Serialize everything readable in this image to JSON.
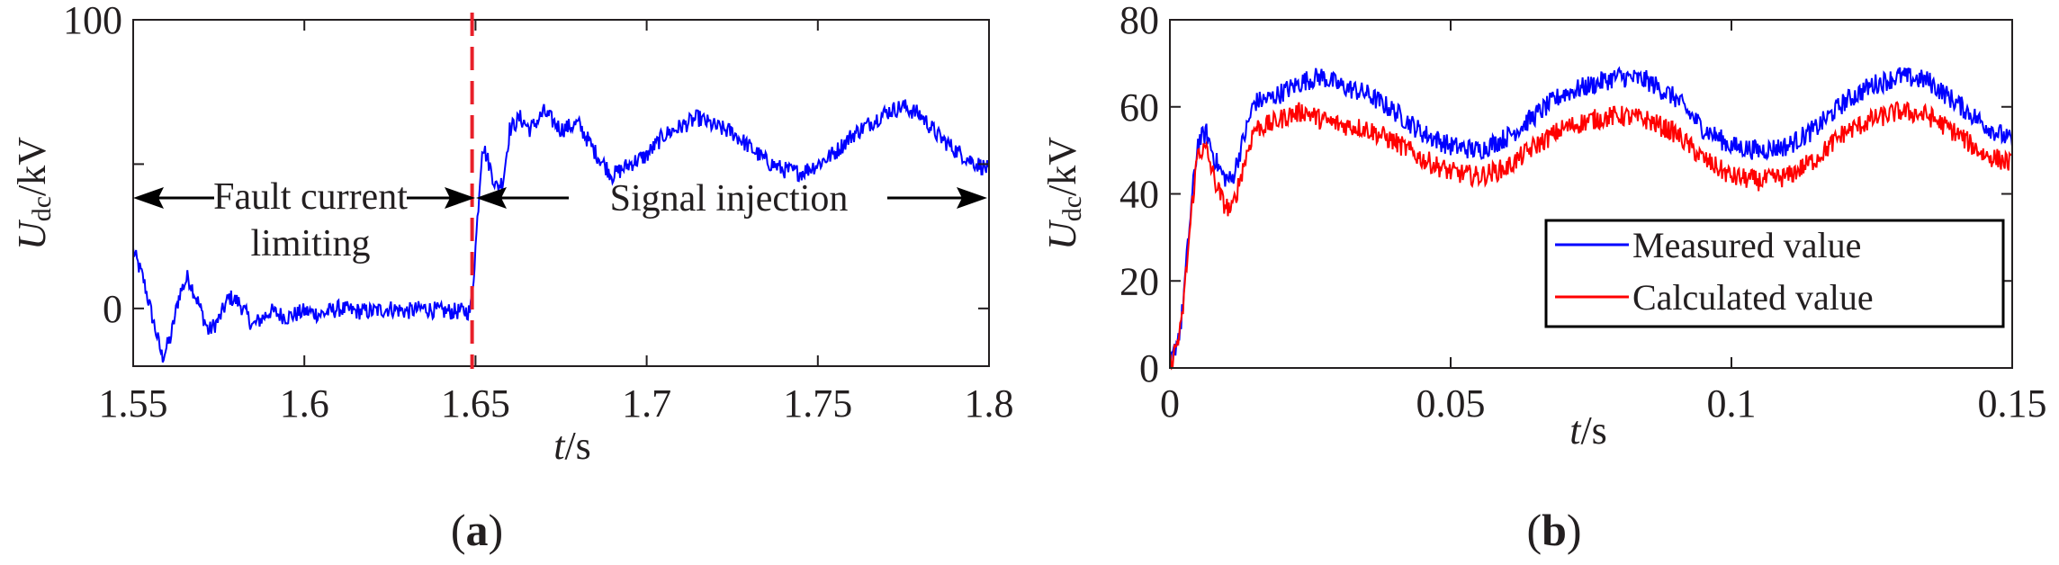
{
  "colors": {
    "measured": "#0000ff",
    "calculated": "#ff0000",
    "divider": "#e8202a",
    "axis": "#231f20"
  },
  "chart_data": [
    {
      "type": "line",
      "panel_label": "a",
      "xlabel": "/s",
      "xlabel_var": "t",
      "ylabel_var": "U",
      "ylabel_sub": "dc",
      "ylabel_unit": "/kV",
      "xlim": [
        1.55,
        1.8
      ],
      "ylim": [
        -20,
        100
      ],
      "xticks": [
        1.55,
        1.6,
        1.65,
        1.7,
        1.75,
        1.8
      ],
      "xtick_labels": [
        "1.55",
        "1.6",
        "1.65",
        "1.7",
        "1.75",
        "1.8"
      ],
      "yticks": [
        0,
        100
      ],
      "ytick_labels": [
        "0",
        "100"
      ],
      "divider_x": 1.649,
      "series": [
        {
          "name": "Udc",
          "color": "#0000ff",
          "x": [
            1.55,
            1.553,
            1.556,
            1.5585,
            1.561,
            1.5635,
            1.566,
            1.569,
            1.572,
            1.575,
            1.578,
            1.581,
            1.585,
            1.59,
            1.595,
            1.6,
            1.605,
            1.61,
            1.615,
            1.62,
            1.625,
            1.63,
            1.635,
            1.64,
            1.645,
            1.6485,
            1.6495,
            1.6505,
            1.652,
            1.654,
            1.656,
            1.658,
            1.66,
            1.663,
            1.666,
            1.67,
            1.675,
            1.68,
            1.685,
            1.69,
            1.695,
            1.7,
            1.705,
            1.71,
            1.715,
            1.72,
            1.725,
            1.73,
            1.735,
            1.74,
            1.745,
            1.75,
            1.755,
            1.76,
            1.765,
            1.77,
            1.775,
            1.78,
            1.785,
            1.79,
            1.795,
            1.8
          ],
          "y": [
            20,
            10,
            -5,
            -17,
            -10,
            5,
            11,
            2,
            -8,
            -4,
            4,
            2,
            -6,
            -1,
            -3,
            -1,
            -2,
            0,
            -1,
            -1,
            0,
            -1,
            0,
            -1,
            -1,
            -1,
            12,
            30,
            57,
            50,
            42,
            44,
            62,
            66,
            62,
            68,
            62,
            64,
            54,
            46,
            50,
            53,
            60,
            63,
            66,
            63,
            61,
            56,
            51,
            48,
            47,
            50,
            54,
            60,
            64,
            68,
            70,
            67,
            60,
            55,
            51,
            48
          ]
        }
      ],
      "annotations": {
        "left_arrow_label_line1": "Fault current",
        "left_arrow_label_line2": "limiting",
        "right_arrow_label": "Signal injection"
      }
    },
    {
      "type": "line",
      "panel_label": "b",
      "xlabel": "/s",
      "xlabel_var": "t",
      "ylabel_var": "U",
      "ylabel_sub": "dc",
      "ylabel_unit": "/kV",
      "xlim": [
        0,
        0.15
      ],
      "ylim": [
        0,
        80
      ],
      "xticks": [
        0,
        0.05,
        0.1,
        0.15
      ],
      "xtick_labels": [
        "0",
        "0.05",
        "0.1",
        "0.15"
      ],
      "yticks": [
        0,
        20,
        40,
        60,
        80
      ],
      "ytick_labels": [
        "0",
        "20",
        "40",
        "60",
        "80"
      ],
      "legend_position": "bottom-right",
      "series": [
        {
          "name": "Measured value",
          "color": "#0000ff",
          "x": [
            0,
            0.002,
            0.004,
            0.005,
            0.0065,
            0.008,
            0.0095,
            0.011,
            0.013,
            0.015,
            0.018,
            0.021,
            0.024,
            0.027,
            0.03,
            0.035,
            0.04,
            0.045,
            0.05,
            0.055,
            0.06,
            0.065,
            0.07,
            0.075,
            0.08,
            0.085,
            0.09,
            0.095,
            0.1,
            0.105,
            0.11,
            0.115,
            0.12,
            0.125,
            0.13,
            0.135,
            0.14,
            0.145,
            0.15
          ],
          "y": [
            0,
            10,
            40,
            52,
            54,
            48,
            44,
            43,
            52,
            61,
            62,
            64,
            66,
            67,
            65,
            63,
            59,
            54,
            51,
            50,
            53,
            58,
            63,
            65,
            67,
            66,
            62,
            55,
            51,
            50,
            51,
            55,
            61,
            65,
            67,
            66,
            61,
            56,
            52
          ]
        },
        {
          "name": "Calculated value",
          "color": "#ff0000",
          "x": [
            0,
            0.002,
            0.004,
            0.005,
            0.0065,
            0.008,
            0.0095,
            0.011,
            0.013,
            0.015,
            0.018,
            0.021,
            0.024,
            0.027,
            0.03,
            0.035,
            0.04,
            0.045,
            0.05,
            0.055,
            0.06,
            0.065,
            0.07,
            0.075,
            0.08,
            0.085,
            0.09,
            0.095,
            0.1,
            0.105,
            0.11,
            0.115,
            0.12,
            0.125,
            0.13,
            0.135,
            0.14,
            0.145,
            0.15
          ],
          "y": [
            0,
            9,
            38,
            50,
            50,
            43,
            38,
            36,
            46,
            55,
            56,
            58,
            59,
            57,
            56,
            55,
            52,
            48,
            45,
            44,
            46,
            51,
            55,
            57,
            58,
            57,
            54,
            48,
            44,
            43,
            44,
            48,
            54,
            57,
            59,
            58,
            54,
            49,
            47
          ]
        }
      ]
    }
  ]
}
